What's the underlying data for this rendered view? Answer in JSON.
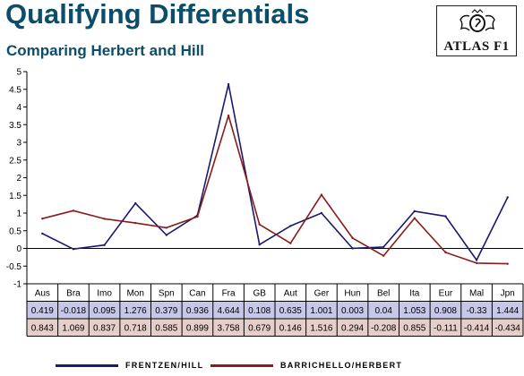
{
  "header": {
    "title": "Qualifying Differentials",
    "subtitle": "Comparing Herbert and Hill"
  },
  "logo": {
    "text": "ATLAS F1",
    "icon": "atlas-crest-icon"
  },
  "colors": {
    "title": "#0b4d6a",
    "series1": "#1a1a6e",
    "series2": "#8b1a1a",
    "row1_bg": "#c5c8e6",
    "row2_bg": "#e6cfc9"
  },
  "chart_data": {
    "type": "line",
    "categories": [
      "Aus",
      "Bra",
      "Imo",
      "Mon",
      "Spn",
      "Can",
      "Fra",
      "GB",
      "Aut",
      "Ger",
      "Hun",
      "Bel",
      "Ita",
      "Eur",
      "Mal",
      "Jpn"
    ],
    "series": [
      {
        "name": "FRENTZEN/HILL",
        "color": "#1a1a6e",
        "values": [
          0.419,
          -0.018,
          0.095,
          1.276,
          0.379,
          0.936,
          4.644,
          0.108,
          0.635,
          1.001,
          0.003,
          0.04,
          1.053,
          0.908,
          -0.33,
          1.444
        ],
        "labels": [
          "0.419",
          "-0.018",
          "0.095",
          "1.276",
          "0.379",
          "0.936",
          "4.644",
          "0.108",
          "0.635",
          "1.001",
          "0.003",
          "0.04",
          "1.053",
          "0.908",
          "-0.33",
          "1.444"
        ]
      },
      {
        "name": "BARRICHELLO/HERBERT",
        "color": "#8b1a1a",
        "values": [
          0.843,
          1.069,
          0.837,
          0.718,
          0.585,
          0.899,
          3.758,
          0.679,
          0.146,
          1.516,
          0.294,
          -0.208,
          0.855,
          -0.111,
          -0.414,
          -0.434
        ],
        "labels": [
          "0.843",
          "1.069",
          "0.837",
          "0.718",
          "0.585",
          "0.899",
          "3.758",
          "0.679",
          "0.146",
          "1.516",
          "0.294",
          "-0.208",
          "0.855",
          "-0.111",
          "-0.414",
          "-0.434"
        ]
      }
    ],
    "ylim": [
      -1,
      5
    ],
    "yticks": [
      "-1",
      "-0.5",
      "0",
      "0.5",
      "1",
      "1.5",
      "2",
      "2.5",
      "3",
      "3.5",
      "4",
      "4.5",
      "5"
    ],
    "grid": false,
    "data_table": true,
    "legend": "bottom"
  }
}
